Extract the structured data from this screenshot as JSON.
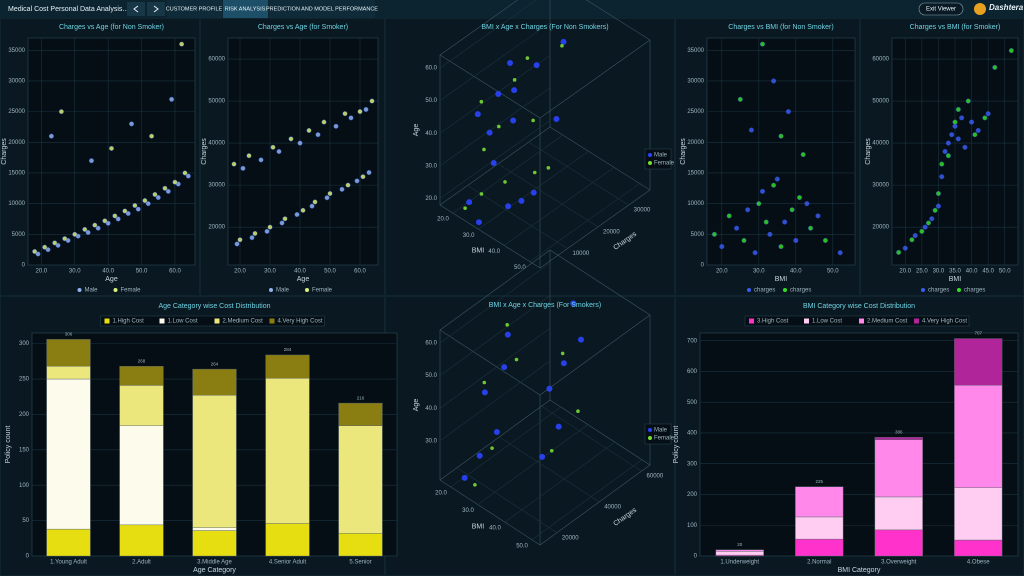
{
  "header": {
    "title": "Medical Cost Personal Data Analysis...",
    "tabs": [
      "CUSTOMER PROFILE",
      "RISK ANALYSIS",
      "PREDICTION AND MODEL PERFORMANCE"
    ],
    "exit": "Exit Viewer",
    "brand": "Dashtera"
  },
  "chart_data": [
    {
      "type": "scatter",
      "title": "Charges vs Age (for Non Smoker)",
      "xlabel": "Age",
      "ylabel": "Charges",
      "xlim": [
        16,
        66
      ],
      "ylim": [
        0,
        37000
      ],
      "xticks": [
        {
          "value": 20,
          "label": "20.0"
        },
        {
          "value": 30,
          "label": "30.0"
        },
        {
          "value": 40,
          "label": "40.0"
        },
        {
          "value": 50,
          "label": "50.0"
        },
        {
          "value": 60,
          "label": "60.0"
        }
      ],
      "yticks": [
        0,
        5000,
        10000,
        15000,
        20000,
        25000,
        30000,
        35000
      ],
      "series": [
        {
          "name": "Male",
          "color": "#8fb4f0",
          "x": [
            19,
            22,
            25,
            28,
            31,
            34,
            37,
            40,
            43,
            46,
            49,
            52,
            55,
            58,
            61,
            64,
            23,
            35,
            47,
            59
          ],
          "y": [
            1800,
            2500,
            3200,
            4000,
            4700,
            5300,
            6000,
            6800,
            7500,
            8400,
            9100,
            10000,
            11000,
            12000,
            13200,
            14500,
            21000,
            17000,
            23000,
            27000
          ]
        },
        {
          "name": "Female",
          "color": "#d8f07a",
          "x": [
            18,
            21,
            24,
            27,
            30,
            33,
            36,
            39,
            42,
            45,
            48,
            51,
            54,
            57,
            60,
            63,
            26,
            41,
            53,
            62
          ],
          "y": [
            2200,
            2900,
            3600,
            4300,
            5000,
            5800,
            6500,
            7200,
            8000,
            8800,
            9700,
            10500,
            11500,
            12500,
            13500,
            15000,
            25000,
            19000,
            21000,
            36000
          ]
        }
      ]
    },
    {
      "type": "scatter",
      "title": "Charges vs Age (for Smoker)",
      "xlabel": "Age",
      "ylabel": "Charges",
      "xlim": [
        16,
        66
      ],
      "ylim": [
        11000,
        65000
      ],
      "xticks": [
        {
          "value": 20,
          "label": "20.0"
        },
        {
          "value": 30,
          "label": "30.0"
        },
        {
          "value": 40,
          "label": "40.0"
        },
        {
          "value": 50,
          "label": "50.0"
        },
        {
          "value": 60,
          "label": "60.0"
        }
      ],
      "yticks": [
        20000,
        30000,
        40000,
        50000,
        60000
      ],
      "series": [
        {
          "name": "Male",
          "color": "#8fb4f0",
          "x": [
            19,
            24,
            29,
            34,
            39,
            44,
            49,
            54,
            59,
            63,
            21,
            27,
            33,
            40,
            46,
            52,
            57,
            62
          ],
          "y": [
            16000,
            17500,
            19000,
            21000,
            23000,
            25000,
            27000,
            29000,
            31000,
            33000,
            34000,
            36000,
            38000,
            40000,
            42000,
            44000,
            46000,
            48000
          ]
        },
        {
          "name": "Female",
          "color": "#d8f07a",
          "x": [
            20,
            25,
            30,
            35,
            41,
            45,
            50,
            56,
            61,
            18,
            23,
            31,
            37,
            43,
            48,
            55,
            60,
            64
          ],
          "y": [
            17000,
            18500,
            20000,
            22000,
            24000,
            26000,
            28000,
            30000,
            32000,
            35000,
            37000,
            39000,
            41000,
            43000,
            45000,
            47000,
            47500,
            50000
          ]
        }
      ]
    },
    {
      "type": "scatter3d",
      "title": "BMI x Age x Charges (For Non Smokers)",
      "xlabel": "Age",
      "ylabel": "BMI",
      "zlabel": "Charges",
      "xlim": [
        18,
        64
      ],
      "ylim": [
        15,
        54
      ],
      "zlim": [
        1000,
        37000
      ],
      "xticks": [
        {
          "value": 20,
          "label": "20.0"
        },
        {
          "value": 30,
          "label": "30.0"
        },
        {
          "value": 40,
          "label": "40.0"
        },
        {
          "value": 50,
          "label": "50.0"
        },
        {
          "value": 60,
          "label": "60.0"
        }
      ],
      "yticks": [
        {
          "value": 20,
          "label": "20.0"
        },
        {
          "value": 30,
          "label": "30.0"
        },
        {
          "value": 40,
          "label": "40.0"
        },
        {
          "value": 50,
          "label": "50.0"
        }
      ],
      "zticks": [
        10000,
        20000,
        30000
      ],
      "series": [
        {
          "name": "Male",
          "color": "#2a45ff",
          "x": [
            22,
            35,
            48,
            60,
            27,
            41,
            55,
            30,
            45,
            62,
            19,
            38,
            52,
            33,
            58
          ],
          "y": [
            24,
            30,
            34,
            28,
            38,
            26,
            32,
            42,
            22,
            36,
            29,
            33,
            27,
            45,
            31
          ],
          "z": [
            3000,
            6000,
            9000,
            13000,
            4000,
            8000,
            11000,
            5000,
            7500,
            15000,
            2000,
            24000,
            10000,
            6500,
            28000
          ]
        },
        {
          "name": "Female",
          "color": "#77dd33",
          "x": [
            25,
            32,
            44,
            57,
            20,
            50,
            36,
            63,
            29,
            47,
            40,
            54
          ],
          "y": [
            27,
            35,
            29,
            31,
            23,
            40,
            25,
            33,
            37,
            21,
            46,
            28
          ],
          "z": [
            4500,
            5500,
            8500,
            12000,
            2500,
            10500,
            7000,
            14500,
            18000,
            9500,
            6000,
            30000
          ]
        }
      ]
    },
    {
      "type": "scatter",
      "title": "Charges vs BMI (for Non Smoker)",
      "xlabel": "BMI",
      "ylabel": "Charges",
      "xlim": [
        16,
        56
      ],
      "ylim": [
        0,
        37000
      ],
      "xticks": [
        {
          "value": 20,
          "label": "20.0"
        },
        {
          "value": 30,
          "label": "30.0"
        },
        {
          "value": 40,
          "label": "40.0"
        },
        {
          "value": 50,
          "label": "50.0"
        }
      ],
      "yticks": [
        0,
        5000,
        10000,
        15000,
        20000,
        25000,
        30000,
        35000
      ],
      "series": [
        {
          "name": "charges",
          "color": "#3a5cf0",
          "x": [
            20,
            24,
            27,
            29,
            31,
            33,
            35,
            37,
            40,
            43,
            46,
            52,
            28,
            34,
            38
          ],
          "y": [
            3000,
            6000,
            9000,
            2000,
            12000,
            5000,
            14000,
            7000,
            4000,
            10000,
            8000,
            2000,
            22000,
            30000,
            25000
          ]
        },
        {
          "name": "charges",
          "color": "#33dd22",
          "x": [
            18,
            22,
            26,
            30,
            32,
            34,
            36,
            39,
            41,
            44,
            48,
            25,
            31,
            36,
            42
          ],
          "y": [
            5000,
            8000,
            4000,
            10000,
            7000,
            13000,
            3000,
            9000,
            11000,
            6000,
            4000,
            27000,
            36000,
            21000,
            18000
          ]
        }
      ]
    },
    {
      "type": "scatter",
      "title": "Charges vs BMI (for Smoker)",
      "xlabel": "BMI",
      "ylabel": "Charges",
      "xlim": [
        16,
        54
      ],
      "ylim": [
        11000,
        65000
      ],
      "xticks": [
        {
          "value": 20,
          "label": "20.0"
        },
        {
          "value": 25,
          "label": "25.0"
        },
        {
          "value": 30,
          "label": "30.0"
        },
        {
          "value": 35,
          "label": "35.0"
        },
        {
          "value": 40,
          "label": "40.0"
        },
        {
          "value": 45,
          "label": "45.0"
        },
        {
          "value": 50,
          "label": "50.0"
        }
      ],
      "yticks": [
        20000,
        30000,
        40000,
        50000,
        60000
      ],
      "series": [
        {
          "name": "charges",
          "color": "#3a5cf0",
          "x": [
            20,
            23,
            26,
            28,
            30,
            31,
            32,
            33,
            34,
            35,
            36,
            37,
            38,
            40,
            42,
            45
          ],
          "y": [
            15000,
            18000,
            20000,
            22000,
            25000,
            32000,
            38000,
            40000,
            42000,
            44000,
            41000,
            46000,
            39000,
            45000,
            43000,
            47000
          ]
        },
        {
          "name": "charges",
          "color": "#33dd22",
          "x": [
            18,
            22,
            25,
            27,
            29,
            30,
            31,
            33,
            35,
            36,
            39,
            41,
            44,
            47,
            52
          ],
          "y": [
            14000,
            17000,
            19000,
            21000,
            24000,
            28000,
            35000,
            37000,
            45000,
            48000,
            50000,
            42000,
            46000,
            58000,
            62000
          ]
        }
      ]
    },
    {
      "type": "bar",
      "stacked": true,
      "title": "Age Category wise Cost Distribution",
      "xlabel": "Age Category",
      "ylabel": "Policy count",
      "categories": [
        "1.Young Adult",
        "2.Adult",
        "3.Middle Age",
        "4.Senior Adult",
        "5.Senior"
      ],
      "ylim": [
        0,
        315
      ],
      "yticks": [
        0,
        50,
        100,
        150,
        200,
        250,
        300
      ],
      "series": [
        {
          "name": "1.High Cost",
          "color": "#e6de10",
          "values": [
            38,
            44,
            36,
            46,
            32
          ]
        },
        {
          "name": "1.Low Cost",
          "color": "#fdfbec",
          "values": [
            212,
            140,
            4,
            0,
            0
          ]
        },
        {
          "name": "2.Medium Cost",
          "color": "#ece77c",
          "values": [
            18,
            57,
            187,
            205,
            152
          ]
        },
        {
          "name": "4.Very High Cost",
          "color": "#8a7d12",
          "values": [
            38,
            27,
            37,
            33,
            32
          ]
        }
      ],
      "totals": [
        306,
        268,
        264,
        284,
        216
      ]
    },
    {
      "type": "scatter3d",
      "title": "BMI x Age x Charges (For Smokers)",
      "xlabel": "Age",
      "ylabel": "BMI",
      "zlabel": "Charges",
      "xlim": [
        18,
        64
      ],
      "ylim": [
        16,
        53
      ],
      "zlim": [
        12000,
        64000
      ],
      "xticks": [
        {
          "value": 30,
          "label": "30.0"
        },
        {
          "value": 40,
          "label": "40.0"
        },
        {
          "value": 50,
          "label": "50.0"
        },
        {
          "value": 60,
          "label": "60.0"
        }
      ],
      "yticks": [
        {
          "value": 20,
          "label": "20.0"
        },
        {
          "value": 30,
          "label": "30.0"
        },
        {
          "value": 40,
          "label": "40.0"
        },
        {
          "value": 50,
          "label": "50.0"
        }
      ],
      "zticks": [
        20000,
        40000,
        60000
      ],
      "series": [
        {
          "name": "Male",
          "color": "#2a45ff",
          "x": [
            20,
            28,
            36,
            44,
            52,
            60,
            24,
            33,
            41,
            49,
            57,
            63
          ],
          "y": [
            22,
            26,
            30,
            24,
            28,
            27,
            35,
            38,
            33,
            36,
            40,
            34
          ],
          "z": [
            16000,
            18000,
            21000,
            23000,
            27000,
            30000,
            36000,
            40000,
            42000,
            45000,
            48000,
            52000
          ]
        },
        {
          "name": "Female",
          "color": "#77dd33",
          "x": [
            19,
            31,
            46,
            55,
            62,
            26,
            38,
            50
          ],
          "y": [
            25,
            29,
            23,
            31,
            26,
            37,
            42,
            34
          ],
          "z": [
            17000,
            20000,
            24000,
            29000,
            31000,
            38000,
            44000,
            47000
          ]
        }
      ]
    },
    {
      "type": "bar",
      "stacked": true,
      "title": "BMI Category wise Cost Distribution",
      "xlabel": "BMI Category",
      "ylabel": "Policy count",
      "categories": [
        "1.Underweight",
        "2.Normal",
        "3.Overweight",
        "4.Obese"
      ],
      "ylim": [
        0,
        725
      ],
      "yticks": [
        0,
        100,
        200,
        300,
        400,
        500,
        600,
        700
      ],
      "series": [
        {
          "name": "3.High Cost",
          "color": "#ff33cc",
          "values": [
            3,
            55,
            85,
            52
          ]
        },
        {
          "name": "1.Low Cost",
          "color": "#ffccf2",
          "values": [
            12,
            72,
            107,
            170
          ]
        },
        {
          "name": "2.Medium Cost",
          "color": "#ff88ea",
          "values": [
            5,
            98,
            186,
            333
          ]
        },
        {
          "name": "4.Very High Cost",
          "color": "#b0259a",
          "values": [
            0,
            0,
            8,
            152
          ]
        }
      ],
      "totals": [
        20,
        225,
        386,
        707
      ]
    }
  ]
}
